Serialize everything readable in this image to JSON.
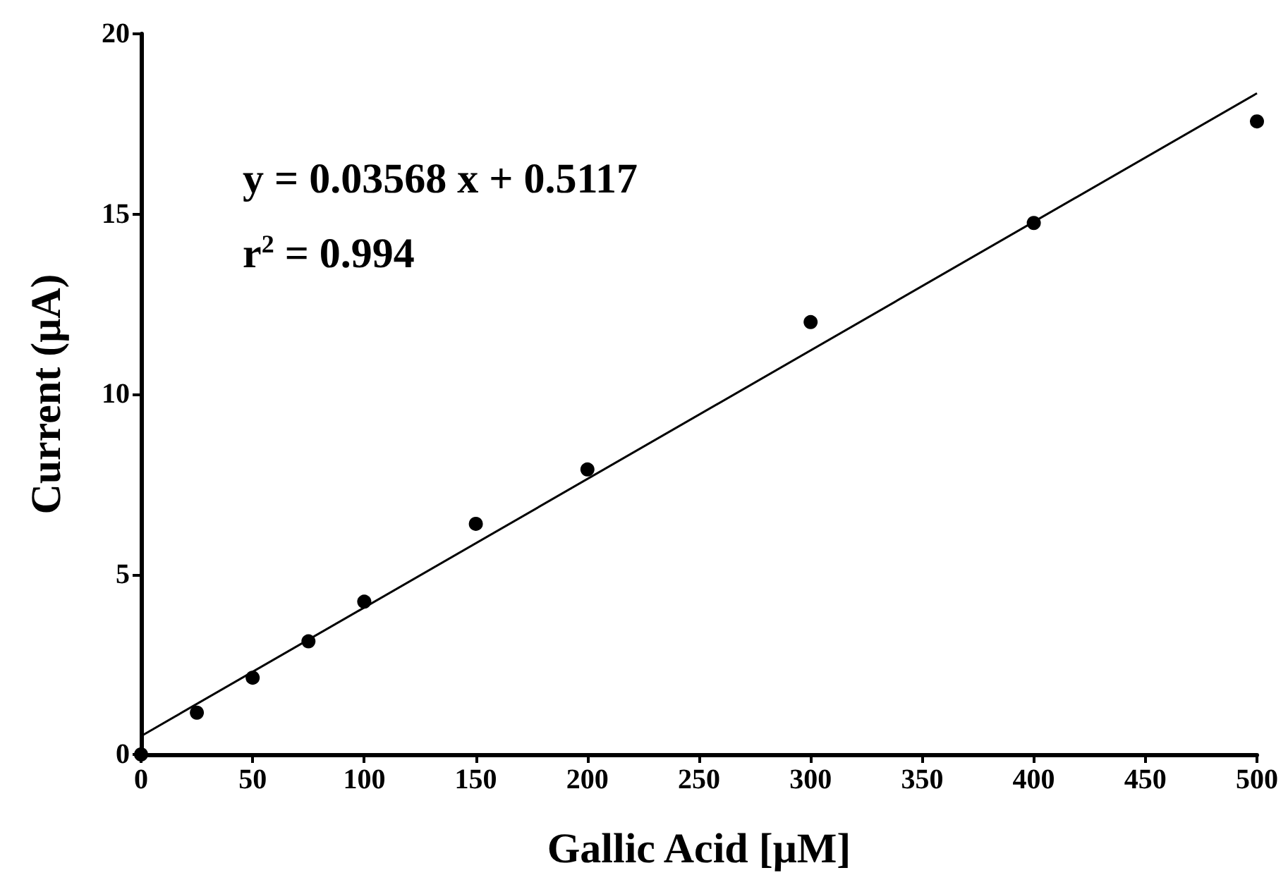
{
  "chart_data": {
    "type": "scatter",
    "xlabel": "Gallic Acid [μM]",
    "ylabel": "Current (μA)",
    "annotations": [
      "y = 0.03568 x + 0.5117",
      "r$^{2}$ = 0.994"
    ],
    "series": [
      {
        "color": "#000000",
        "x": [
          0,
          25,
          50,
          75,
          100,
          150,
          200,
          300,
          400,
          500
        ],
        "values": [
          0,
          1.16,
          2.13,
          3.14,
          4.24,
          6.4,
          7.91,
          12.0,
          14.75,
          17.57
        ]
      },
      {
        "type": "line",
        "color": "#000000",
        "x": [
          0,
          500
        ],
        "values": [
          0.51,
          18.35
        ],
        "marker": "none"
      }
    ],
    "xlim": [
      0,
      500
    ],
    "xticks": [
      0,
      50,
      100,
      150,
      200,
      250,
      300,
      350,
      400,
      450,
      500
    ],
    "ylim": [
      0,
      20
    ],
    "yticks": [
      0,
      5,
      10,
      15,
      20
    ],
    "grid": false,
    "marker": "circle",
    "line_style": "solid"
  }
}
